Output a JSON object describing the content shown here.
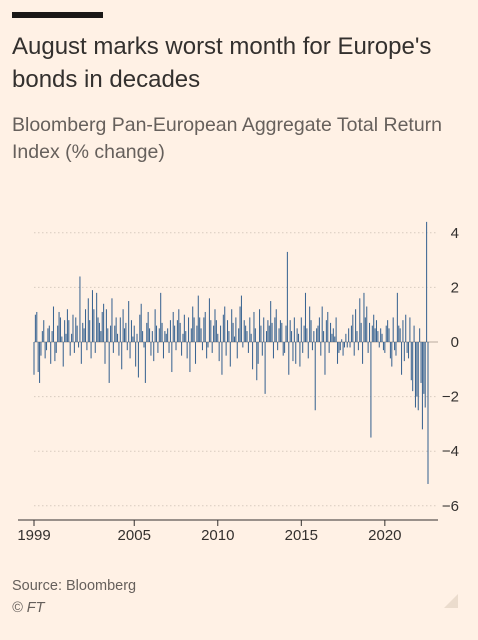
{
  "header": {
    "title": "August marks worst month for Europe's bonds in decades",
    "subtitle": "Bloomberg Pan-European Aggregate Total Return Index (% change)"
  },
  "footer": {
    "source": "Source: Bloomberg",
    "credit": "© FT"
  },
  "colors": {
    "background": "#FFF1E5",
    "bar": "#3B6592",
    "grid": "#D8CBBF",
    "text": "#33302E",
    "muted": "#66605C"
  },
  "chart_data": {
    "type": "bar",
    "title": "August marks worst month for Europe's bonds in decades",
    "subtitle": "Bloomberg Pan-European Aggregate Total Return Index (% change)",
    "frequency": "monthly",
    "x_start": "1999-01",
    "x_end": "2022-08",
    "x_tick_labels": [
      "1999",
      "2005",
      "2010",
      "2015",
      "2020"
    ],
    "y_ticks": [
      4,
      2,
      0,
      -2,
      -4,
      -6
    ],
    "ylim": [
      -6,
      4.5
    ],
    "grid": true,
    "series": [
      {
        "values": [
          -1.2,
          1.0,
          1.1,
          -1.1,
          -1.5,
          -0.5,
          0.4,
          0.8,
          -0.6,
          -0.3,
          0.5,
          0.6,
          -0.8,
          0.4,
          1.3,
          -0.7,
          -0.4,
          0.6,
          1.1,
          0.9,
          0.2,
          -0.9,
          0.8,
          0.3,
          1.2,
          0.8,
          -0.5,
          0.3,
          1.0,
          -0.4,
          0.9,
          0.6,
          -0.2,
          2.4,
          -0.8,
          0.7,
          0.5,
          1.2,
          -0.3,
          1.6,
          0.8,
          -0.6,
          1.9,
          1.2,
          -0.4,
          1.8,
          0.9,
          0.7,
          0.4,
          1.1,
          1.4,
          -0.8,
          1.2,
          0.5,
          -1.5,
          0.6,
          1.6,
          -0.4,
          0.6,
          0.9,
          0.3,
          -0.5,
          0.9,
          -1.0,
          1.2,
          0.5,
          0.7,
          -0.3,
          1.5,
          -0.6,
          0.8,
          0.2,
          0.6,
          -0.9,
          0.3,
          -1.3,
          1.0,
          1.4,
          0.4,
          -0.2,
          -1.5,
          0.7,
          1.1,
          0.5,
          -0.5,
          0.4,
          -0.7,
          1.2,
          0.6,
          -0.4,
          0.5,
          1.8,
          0.7,
          -0.6,
          0.4,
          0.3,
          0.5,
          -0.4,
          0.8,
          -1.1,
          1.1,
          0.6,
          -0.3,
          0.8,
          1.2,
          0.7,
          -0.5,
          0.3,
          1.0,
          0.4,
          -0.6,
          0.9,
          -1.1,
          0.5,
          1.3,
          0.9,
          -0.8,
          0.6,
          1.7,
          0.9,
          0.5,
          -0.3,
          0.9,
          1.1,
          -0.6,
          -0.2,
          1.6,
          0.8,
          -0.4,
          0.6,
          1.2,
          0.8,
          0.3,
          -0.7,
          0.6,
          -1.2,
          1.0,
          1.3,
          -0.5,
          0.8,
          0.4,
          -0.9,
          1.2,
          0.7,
          0.2,
          0.9,
          -0.6,
          0.5,
          1.3,
          1.7,
          -0.2,
          0.8,
          0.6,
          0.4,
          -0.4,
          0.9,
          0.3,
          -1.0,
          1.1,
          0.5,
          -1.4,
          -0.8,
          1.2,
          0.6,
          -0.5,
          0.9,
          -1.9,
          0.4,
          0.8,
          0.6,
          1.5,
          0.7,
          -0.6,
          0.9,
          1.2,
          -0.3,
          0.5,
          0.8,
          0.7,
          -0.5,
          -0.4,
          0.6,
          3.3,
          -1.2,
          0.8,
          0.4,
          -0.7,
          0.9,
          -0.8,
          0.5,
          0.3,
          -0.9,
          0.9,
          -0.4,
          0.6,
          1.8,
          0.5,
          -0.6,
          1.3,
          0.8,
          -0.3,
          0.4,
          -2.5,
          0.5,
          0.6,
          0.9,
          -0.5,
          1.3,
          0.4,
          -1.2,
          0.8,
          1.1,
          -0.4,
          0.7,
          0.3,
          0.5,
          0.2,
          0.9,
          -0.8,
          -0.4,
          -0.3,
          0.1,
          -0.5,
          -0.2,
          0.3,
          -0.2,
          0.5,
          -0.2,
          0.6,
          1.0,
          -0.5,
          1.2,
          0.4,
          -0.3,
          1.6,
          0.7,
          -0.8,
          1.8,
          0.9,
          1.3,
          -0.4,
          0.7,
          -3.5,
          0.6,
          1.0,
          0.5,
          0.8,
          0.4,
          -0.2,
          0.5,
          0.3,
          -0.3,
          -0.4,
          0.6,
          0.8,
          0.5,
          -0.6,
          -0.9,
          0.9,
          -0.3,
          -0.5,
          1.8,
          0.6,
          0.5,
          -1.2,
          0.8,
          -0.7,
          1.0,
          -0.4,
          -0.6,
          0.9,
          -1.4,
          -1.8,
          0.6,
          -2.4,
          -2.0,
          -2.5,
          0.5,
          -1.5,
          -3.2,
          -1.9,
          -2.4,
          4.4,
          -5.2
        ]
      }
    ]
  }
}
